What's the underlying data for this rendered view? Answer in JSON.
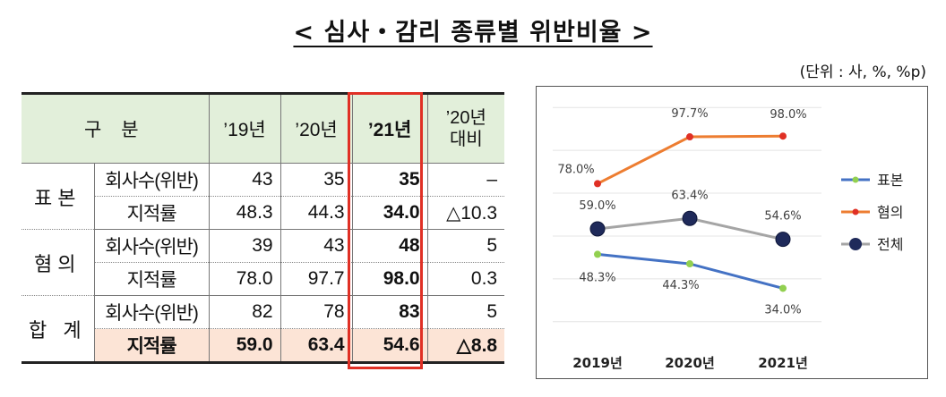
{
  "title": "< 심사・감리 종류별 위반비율 >",
  "unit": "(단위 : 사, %, %p)",
  "table": {
    "header": {
      "category": "구 분",
      "y19": "’19년",
      "y20": "’20년",
      "y21": "’21년",
      "vs20_line1": "’20년",
      "vs20_line2": "대비"
    },
    "groups": [
      {
        "name": "표본",
        "rows": [
          {
            "label": "회사수(위반)",
            "y19": "43",
            "y20": "35",
            "y21": "35",
            "vs20": "–"
          },
          {
            "label": "지적률",
            "y19": "48.3",
            "y20": "44.3",
            "y21": "34.0",
            "vs20": "△10.3"
          }
        ]
      },
      {
        "name": "혐의",
        "rows": [
          {
            "label": "회사수(위반)",
            "y19": "39",
            "y20": "43",
            "y21": "48",
            "vs20": "5"
          },
          {
            "label": "지적률",
            "y19": "78.0",
            "y20": "97.7",
            "y21": "98.0",
            "vs20": "0.3"
          }
        ]
      },
      {
        "name": "합 계",
        "rows": [
          {
            "label": "회사수(위반)",
            "y19": "82",
            "y20": "78",
            "y21": "83",
            "vs20": "5"
          },
          {
            "label": "지적률",
            "y19": "59.0",
            "y20": "63.4",
            "y21": "54.6",
            "vs20": "△8.8"
          }
        ]
      }
    ]
  },
  "chart_data": {
    "type": "line",
    "categories": [
      "2019년",
      "2020년",
      "2021년"
    ],
    "series": [
      {
        "name": "표본",
        "values": [
          48.3,
          44.3,
          34.0
        ],
        "labels": [
          "48.3%",
          "44.3%",
          "34.0%"
        ],
        "color": "#4472c4",
        "marker": "#92d050"
      },
      {
        "name": "혐의",
        "values": [
          78.0,
          97.7,
          98.0
        ],
        "labels": [
          "78.0%",
          "97.7%",
          "98.0%"
        ],
        "color": "#ed7d31",
        "marker": "#e03025"
      },
      {
        "name": "전체",
        "values": [
          59.0,
          63.4,
          54.6
        ],
        "labels": [
          "59.0%",
          "63.4%",
          "54.6%"
        ],
        "color": "#a5a5a5",
        "marker": "#1f2a5a"
      }
    ],
    "ylim": [
      15,
      115
    ],
    "grid": true,
    "legend": "right"
  }
}
